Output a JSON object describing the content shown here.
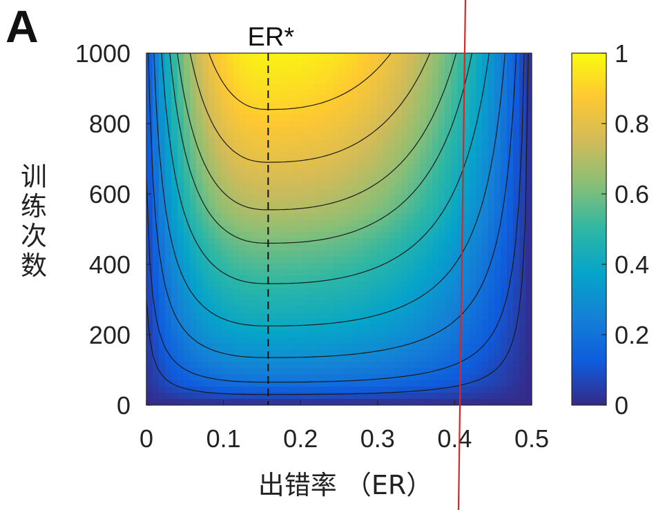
{
  "panel_label": "A",
  "chart_data": {
    "type": "heatmap",
    "title": "",
    "xlabel": "出错率 （ER）",
    "ylabel": "训练次数",
    "xlim": [
      0,
      0.5
    ],
    "ylim": [
      0,
      1000
    ],
    "x_ticks": [
      "0",
      "0.1",
      "0.2",
      "0.3",
      "0.4",
      "0.5"
    ],
    "y_ticks": [
      "0",
      "200",
      "400",
      "600",
      "800",
      "1000"
    ],
    "colorbar": {
      "ticks": [
        "0",
        "0.2",
        "0.4",
        "0.6",
        "0.8",
        "1"
      ],
      "range": [
        0,
        1
      ],
      "colormap": "parula"
    },
    "annotations": [
      {
        "text": "ER*",
        "x": 0.158,
        "style": "dashed vertical line"
      },
      {
        "text": "",
        "x": 0.405,
        "style": "solid red line",
        "color": "#d62728"
      }
    ],
    "contour_minima": [
      {
        "x": 0.158,
        "y": 30
      },
      {
        "x": 0.158,
        "y": 65
      },
      {
        "x": 0.158,
        "y": 135
      },
      {
        "x": 0.158,
        "y": 225
      },
      {
        "x": 0.158,
        "y": 345
      },
      {
        "x": 0.158,
        "y": 460
      },
      {
        "x": 0.158,
        "y": 555
      },
      {
        "x": 0.158,
        "y": 690
      },
      {
        "x": 0.158,
        "y": 840
      }
    ],
    "contour_levels": [
      0.1,
      0.2,
      0.3,
      0.4,
      0.5,
      0.6,
      0.7,
      0.8,
      0.9
    ]
  }
}
